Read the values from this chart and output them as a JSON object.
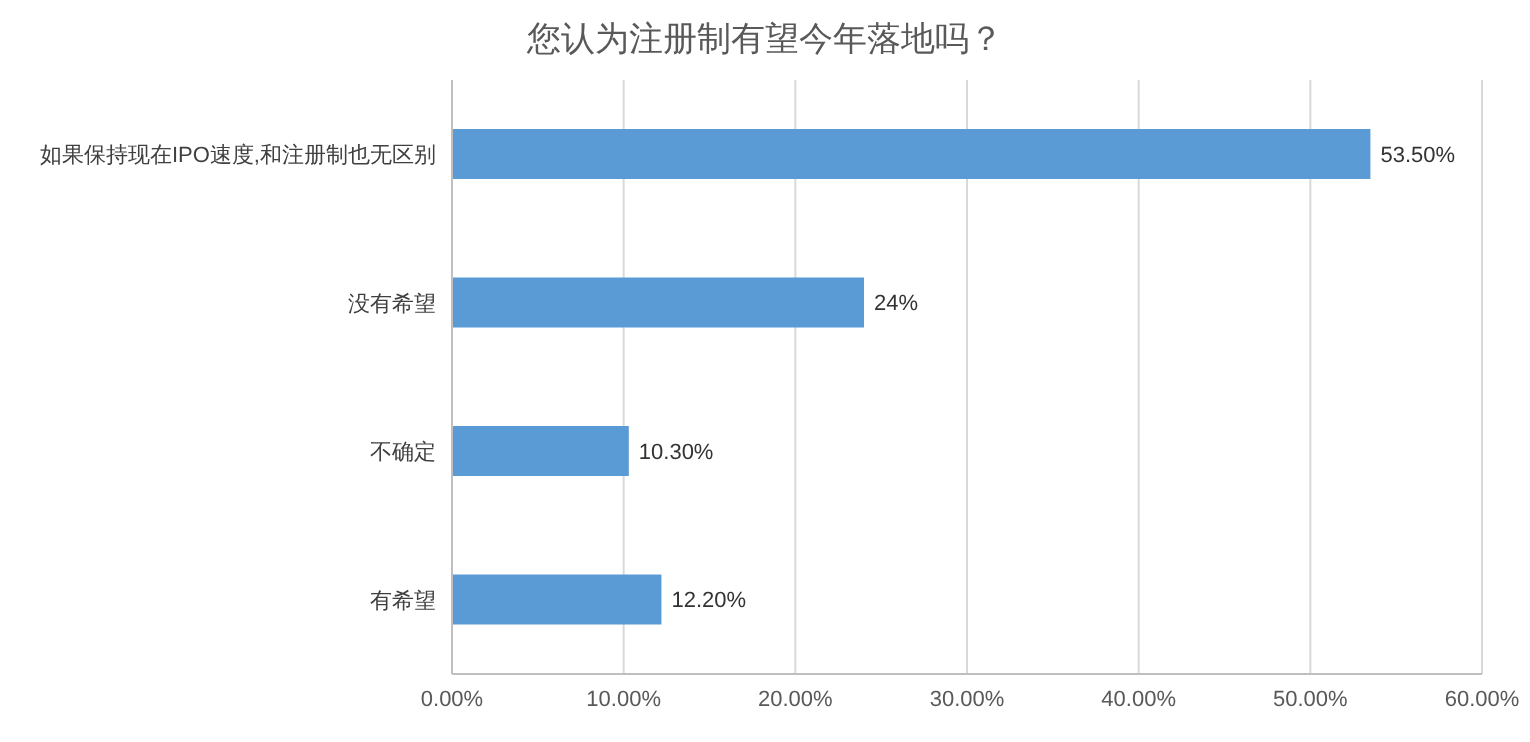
{
  "chart_data": {
    "type": "bar",
    "orientation": "horizontal",
    "title": "您认为注册制有望今年落地吗？",
    "categories": [
      "如果保持现在IPO速度,和注册制也无区别",
      "没有希望",
      "不确定",
      "有希望"
    ],
    "values": [
      53.5,
      24,
      10.3,
      12.2
    ],
    "value_labels": [
      "53.50%",
      "24%",
      "10.30%",
      "12.20%"
    ],
    "color": "#5b9bd5",
    "xlim": [
      0,
      60
    ],
    "xticks": [
      {
        "value": 0,
        "label": "0.00%"
      },
      {
        "value": 10,
        "label": "10.00%"
      },
      {
        "value": 20,
        "label": "20.00%"
      },
      {
        "value": 30,
        "label": "30.00%"
      },
      {
        "value": 40,
        "label": "40.00%"
      },
      {
        "value": 50,
        "label": "50.00%"
      },
      {
        "value": 60,
        "label": "60.00%"
      }
    ],
    "grid": "x"
  }
}
